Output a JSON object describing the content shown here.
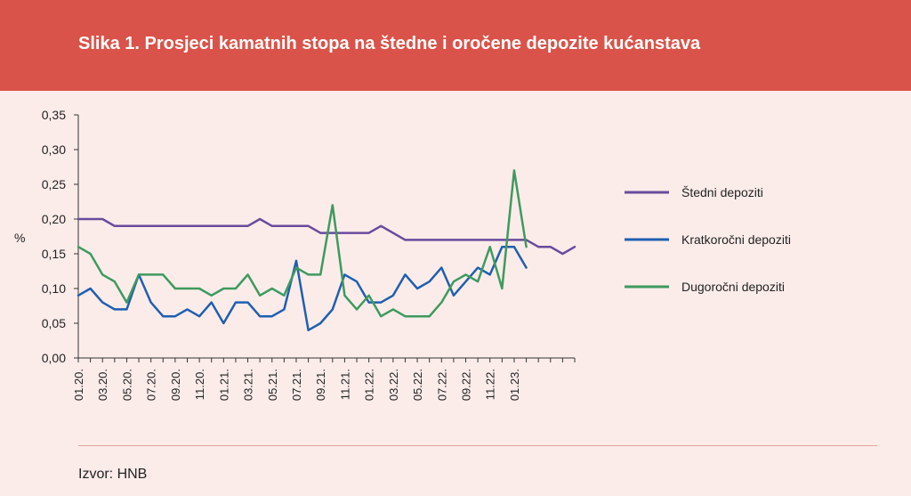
{
  "header": {
    "title": "Slika 1. Prosjeci kamatnih stopa na štedne i oročene depozite kućanstava"
  },
  "source": {
    "label": "Izvor: HNB"
  },
  "chart_data": {
    "type": "line",
    "title": "Slika 1. Prosjeci kamatnih stopa na štedne i oročene depozite kućanstava",
    "xlabel": "",
    "ylabel": "%",
    "ylim": [
      0,
      0.35
    ],
    "yticks": [
      "0,00",
      "0,05",
      "0,10",
      "0,15",
      "0,20",
      "0,25",
      "0,30",
      "0,35"
    ],
    "ytick_values": [
      0,
      0.05,
      0.1,
      0.15,
      0.2,
      0.25,
      0.3,
      0.35
    ],
    "xtick_labels": [
      "01.20.",
      "03.20.",
      "05.20.",
      "07.20.",
      "09.20.",
      "11.20.",
      "01.21.",
      "03.21.",
      "05.21.",
      "07.21.",
      "09.21.",
      "11.21.",
      "01.22.",
      "03.22.",
      "05.22.",
      "07.22.",
      "09.22.",
      "11.22.",
      "01.23."
    ],
    "legend_position": "right",
    "series": [
      {
        "name": "Štedni depoziti",
        "color": "#6a4a9c",
        "values": [
          0.2,
          0.2,
          0.2,
          0.19,
          0.19,
          0.19,
          0.19,
          0.19,
          0.19,
          0.19,
          0.19,
          0.19,
          0.19,
          0.19,
          0.19,
          0.2,
          0.19,
          0.19,
          0.19,
          0.19,
          0.18,
          0.18,
          0.18,
          0.18,
          0.18,
          0.19,
          0.18,
          0.17,
          0.17,
          0.17,
          0.17,
          0.17,
          0.17,
          0.17,
          0.17,
          0.17,
          0.17,
          0.17,
          0.16,
          0.16,
          0.15,
          0.16
        ]
      },
      {
        "name": "Kratkoročni depoziti",
        "color": "#1f5fb0",
        "values": [
          0.09,
          0.1,
          0.08,
          0.07,
          0.07,
          0.12,
          0.08,
          0.06,
          0.06,
          0.07,
          0.06,
          0.08,
          0.05,
          0.08,
          0.08,
          0.06,
          0.06,
          0.07,
          0.14,
          0.04,
          0.05,
          0.07,
          0.12,
          0.11,
          0.08,
          0.08,
          0.09,
          0.12,
          0.1,
          0.11,
          0.13,
          0.09,
          0.11,
          0.13,
          0.12,
          0.16,
          0.16,
          0.13
        ]
      },
      {
        "name": "Dugoročni depoziti",
        "color": "#3e9a5e",
        "values": [
          0.16,
          0.15,
          0.12,
          0.11,
          0.08,
          0.12,
          0.12,
          0.12,
          0.1,
          0.1,
          0.1,
          0.09,
          0.1,
          0.1,
          0.12,
          0.09,
          0.1,
          0.09,
          0.13,
          0.12,
          0.12,
          0.22,
          0.09,
          0.07,
          0.09,
          0.06,
          0.07,
          0.06,
          0.06,
          0.06,
          0.08,
          0.11,
          0.12,
          0.11,
          0.16,
          0.1,
          0.27,
          0.16
        ]
      }
    ]
  }
}
